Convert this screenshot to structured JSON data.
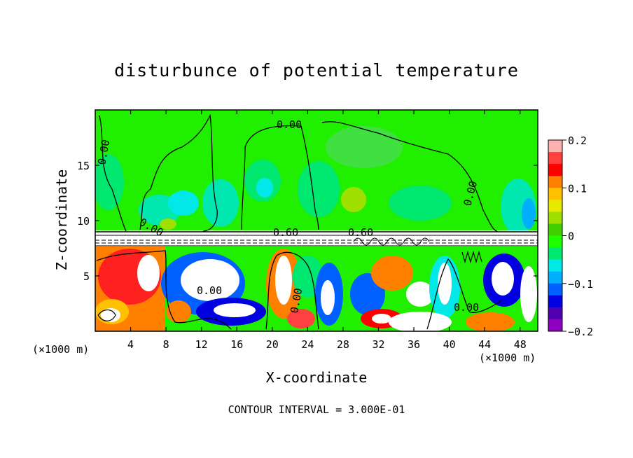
{
  "chart_data": {
    "type": "heatmap",
    "title": "disturbunce of potential temperature",
    "xlabel": "X-coordinate",
    "ylabel": "Z-coordinate",
    "x_unit": "(×1000 m)",
    "x_ticks": [
      4,
      8,
      12,
      16,
      20,
      24,
      28,
      32,
      36,
      40,
      44,
      48
    ],
    "y_ticks": [
      5,
      10,
      15
    ],
    "xlim": [
      0,
      50
    ],
    "ylim": [
      0,
      20
    ],
    "contour_labels": [
      "0.00",
      "0.00",
      "0.00",
      "0.00",
      "0.00",
      "0.00",
      "0.00",
      "0.60",
      "0.60"
    ],
    "colorbar": {
      "range": [
        -0.2,
        0.2
      ],
      "tick_labels": [
        "0.2",
        "0.1",
        "0",
        "−0.1",
        "−0.2"
      ],
      "colors": [
        "#ffb0b0",
        "#ff4040",
        "#ff0000",
        "#ff8000",
        "#ffc000",
        "#e8e800",
        "#a0e000",
        "#40d000",
        "#20ff00",
        "#00e870",
        "#00e8e8",
        "#00b0ff",
        "#0060ff",
        "#0000e0",
        "#5000b0",
        "#9000c0"
      ]
    },
    "footer": "CONTOUR INTERVAL = 3.000E-01"
  }
}
